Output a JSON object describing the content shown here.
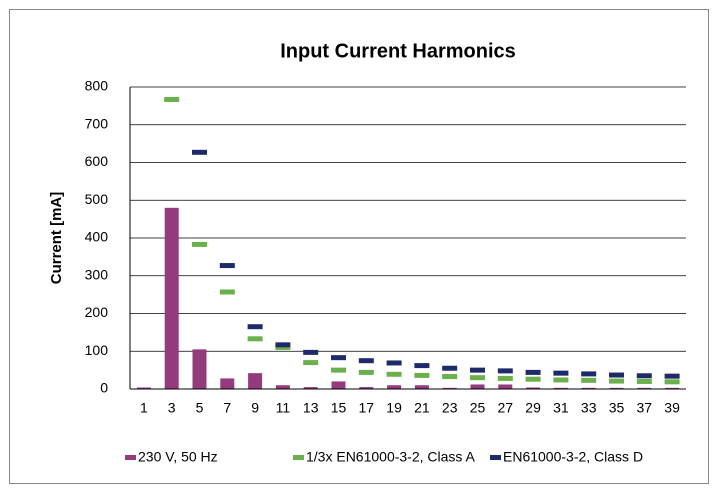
{
  "chart_data": {
    "type": "bar",
    "title": "Input Current Harmonics",
    "y_label": "Current [mA]",
    "categories": [
      "1",
      "3",
      "5",
      "7",
      "9",
      "11",
      "13",
      "15",
      "17",
      "19",
      "21",
      "23",
      "25",
      "27",
      "29",
      "31",
      "33",
      "35",
      "37",
      "39"
    ],
    "series": [
      {
        "name": "230 V, 50 Hz",
        "color": "#953a7c",
        "kind": "bar",
        "values": [
          4,
          480,
          105,
          28,
          42,
          10,
          5,
          20,
          5,
          10,
          10,
          3,
          12,
          12,
          4,
          3,
          3,
          3,
          3,
          3
        ]
      },
      {
        "name": "1/3x EN61000-3-2, Class A",
        "color": "#6ab04c",
        "kind": "marker",
        "values": [
          null,
          767,
          383,
          257,
          133,
          110,
          70,
          50,
          44,
          39,
          36,
          33,
          30,
          28,
          26,
          24,
          23,
          21,
          20,
          19
        ]
      },
      {
        "name": "EN61000-3-2, Class D",
        "color": "#1f2a6b",
        "kind": "marker",
        "values": [
          null,
          null,
          627,
          327,
          165,
          117,
          97,
          83,
          75,
          69,
          62,
          55,
          50,
          48,
          44,
          42,
          40,
          37,
          35,
          34
        ]
      }
    ],
    "ylim": [
      0,
      800
    ],
    "yticks": [
      0,
      100,
      200,
      300,
      400,
      500,
      600,
      700,
      800
    ],
    "grid": true,
    "legend": "bottom"
  }
}
